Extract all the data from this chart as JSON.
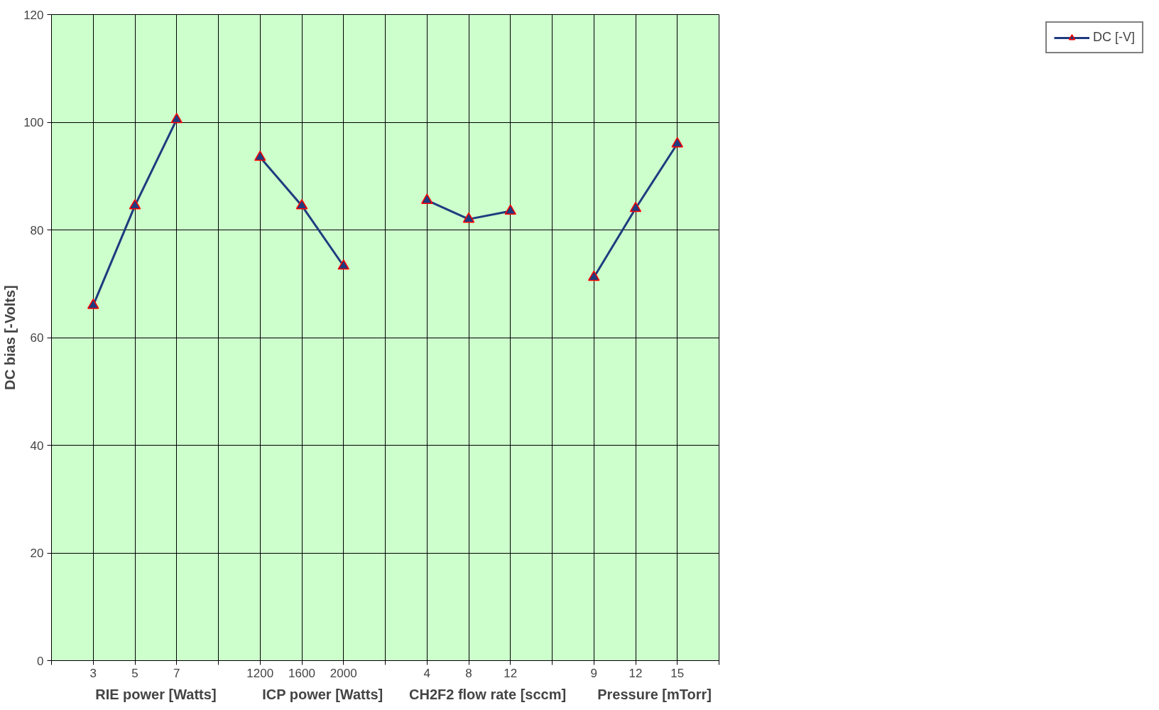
{
  "chart_data": {
    "type": "line",
    "ylabel": "DC bias [-Volts]",
    "categories": [
      null,
      "3",
      "5",
      "7",
      null,
      "1200",
      "1600",
      "2000",
      null,
      "4",
      "8",
      "12",
      null,
      "9",
      "12",
      "15",
      null
    ],
    "series": [
      {
        "name": "DC [-V]",
        "color": "#1f3b7f",
        "values": [
          null,
          66,
          84.5,
          100.5,
          null,
          93.5,
          84.5,
          73.3,
          null,
          85.5,
          82,
          83.5,
          null,
          71.2,
          84,
          96,
          null
        ]
      }
    ],
    "annotations": [
      "RIE power [Watts]",
      "ICP power [Watts]",
      "CH2F2  flow rate [sccm]",
      "Pressure  [mTorr]"
    ],
    "ylim": [
      0,
      120
    ],
    "yticks": [
      0,
      20,
      40,
      60,
      80,
      100,
      120
    ],
    "grid": true,
    "legend": "right",
    "marker": "triangle",
    "line_style": "solid"
  }
}
